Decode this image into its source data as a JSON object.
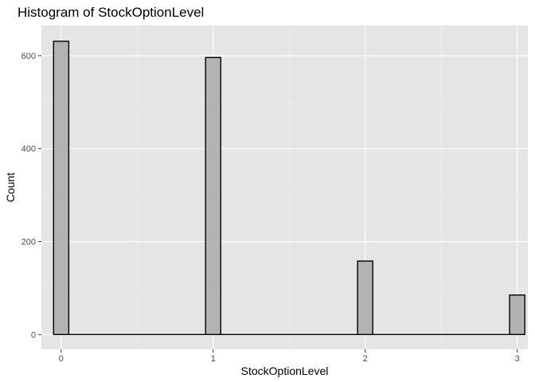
{
  "chart_data": {
    "type": "bar",
    "title": "Histogram of StockOptionLevel",
    "xlabel": "StockOptionLevel",
    "ylabel": "Count",
    "x_ticks": [
      0,
      1,
      2,
      3
    ],
    "y_ticks": [
      0,
      200,
      400,
      600
    ],
    "xlim": [
      -0.13,
      3.07
    ],
    "ylim": [
      -32,
      665
    ],
    "bins": 30,
    "bin_width": 0.1,
    "values": [
      {
        "x": 0,
        "count": 631
      },
      {
        "x": 1,
        "count": 596
      },
      {
        "x": 2,
        "count": 158
      },
      {
        "x": 3,
        "count": 85
      }
    ],
    "grid": true,
    "panel_background": "#e5e5e5",
    "bar_fill": "#b3b3b3",
    "bar_outline": "#000000"
  }
}
